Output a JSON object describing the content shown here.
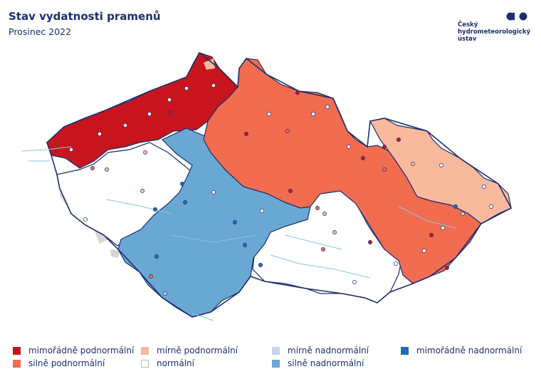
{
  "header": {
    "title": "Stav vydatnosti pramenů",
    "subtitle": "Prosinec 2022"
  },
  "logo": {
    "lines": [
      "Český",
      "hydrometeorologický",
      "ústav"
    ],
    "icon": "chmi-logo-icon"
  },
  "colors": {
    "extreme_below": "#c8151d",
    "strong_below": "#f26c50",
    "mild_below": "#f8b99d",
    "normal": "#ffffff",
    "mild_above": "#c6d4ea",
    "strong_above": "#6aa8d4",
    "extreme_above": "#1c6db5",
    "border": "#1b2f6e",
    "rivers": "#86c7dd"
  },
  "legend": {
    "items": [
      {
        "key": "extreme_below",
        "label": "mimořádně podnormální"
      },
      {
        "key": "strong_below",
        "label": "silně podnormální"
      },
      {
        "key": "mild_below",
        "label": "mírně podnormální"
      },
      {
        "key": "normal",
        "label": "normální"
      },
      {
        "key": "mild_above",
        "label": "mírně nadnormální"
      },
      {
        "key": "strong_above",
        "label": "silně nadnormální"
      },
      {
        "key": "extreme_above",
        "label": "mimořádně nadnormální"
      }
    ]
  }
}
